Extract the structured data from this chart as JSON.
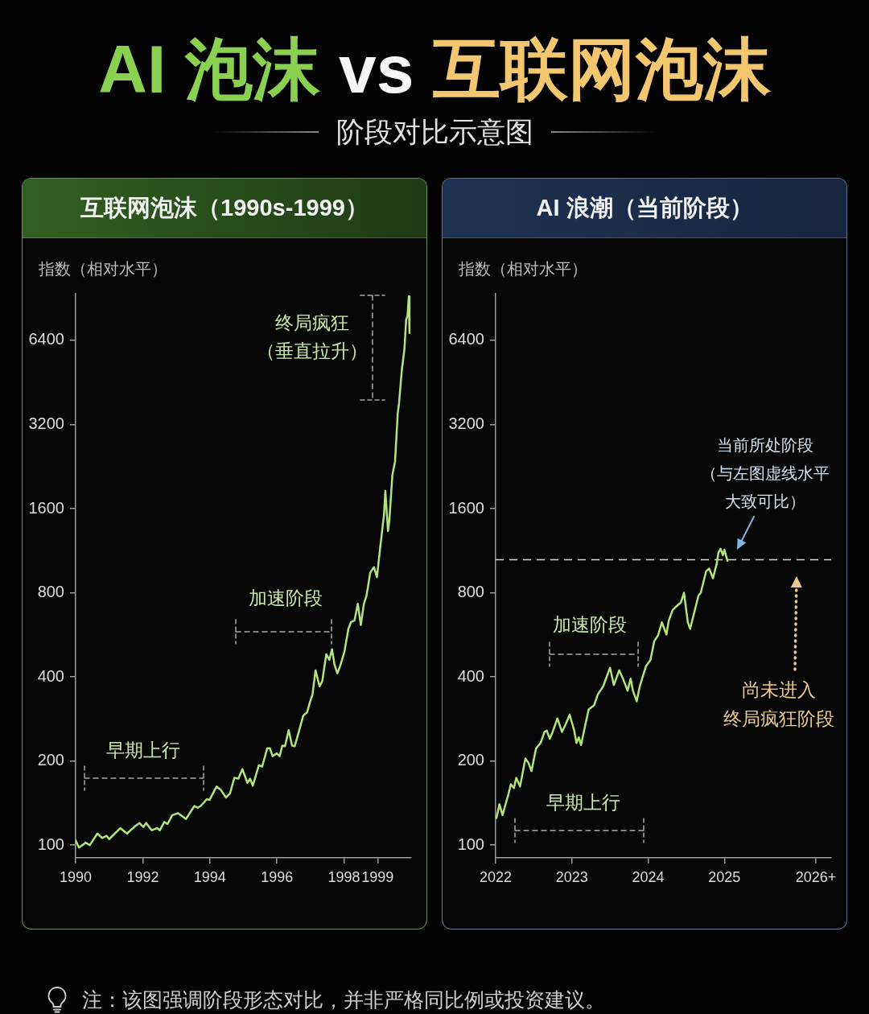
{
  "chart_data": [
    {
      "type": "other",
      "title": "AI 泡沫 vs 互联网泡沫",
      "subtitle": "阶段对比示意图"
    },
    {
      "type": "line",
      "title": "互联网泡沫（1990s-1999）",
      "ylabel": "指数（相对水平）",
      "log": true,
      "x": [
        1990.0,
        1990.1,
        1990.3,
        1990.42,
        1990.65,
        1990.79,
        1990.92,
        1991.0,
        1991.33,
        1991.53,
        1991.78,
        1991.9,
        1992.02,
        1992.1,
        1992.27,
        1992.43,
        1992.51,
        1992.64,
        1992.74,
        1992.88,
        1993.05,
        1993.17,
        1993.29,
        1993.4,
        1993.54,
        1993.64,
        1993.73,
        1993.91,
        1993.99,
        1994.2,
        1994.32,
        1994.48,
        1994.6,
        1994.73,
        1994.85,
        1994.97,
        1995.12,
        1995.2,
        1995.28,
        1995.46,
        1995.56,
        1995.71,
        1995.79,
        1995.87,
        1995.99,
        1996.08,
        1996.16,
        1996.24,
        1996.35,
        1996.45,
        1996.53,
        1996.65,
        1996.78,
        1996.9,
        1996.98,
        1997.06,
        1997.15,
        1997.27,
        1997.35,
        1997.47,
        1997.56,
        1997.64,
        1997.72,
        1997.8,
        1997.89,
        1998.01,
        1998.13,
        1998.21,
        1998.31,
        1998.41,
        1998.5,
        1998.59,
        1998.67,
        1998.78,
        1998.89,
        1998.98,
        1999.07,
        1999.19,
        1999.23,
        1999.31,
        1999.35,
        1999.44,
        1999.52,
        1999.6,
        1999.64,
        1999.72,
        1999.8,
        1999.85,
        1999.89,
        1999.93,
        1999.95
      ],
      "series": [
        {
          "color": "#b2e47c",
          "values": [
            104,
            98,
            102,
            100,
            110,
            106,
            108,
            105,
            115,
            110,
            117,
            120,
            116,
            120,
            113,
            115,
            113,
            121,
            119,
            128,
            130,
            127,
            124,
            130,
            138,
            136,
            138,
            146,
            145,
            162,
            158,
            148,
            153,
            174,
            173,
            187,
            167,
            173,
            163,
            193,
            191,
            222,
            222,
            208,
            213,
            208,
            227,
            226,
            258,
            227,
            226,
            254,
            290,
            299,
            324,
            346,
            422,
            370,
            386,
            482,
            460,
            502,
            440,
            412,
            440,
            491,
            595,
            629,
            636,
            730,
            613,
            730,
            781,
            944,
            988,
            910,
            1140,
            1520,
            1850,
            1330,
            1450,
            2110,
            2360,
            3510,
            3830,
            4990,
            5960,
            7590,
            7830,
            9200,
            6800
          ]
        }
      ],
      "xlim": [
        1990,
        2000
      ],
      "xticks": [
        1990,
        1992,
        1994,
        1996,
        1998,
        1999
      ],
      "ylim": [
        90,
        9400
      ],
      "yticks": [
        100,
        200,
        400,
        800,
        1600,
        3200,
        6400
      ],
      "annotations": [
        "早期上行",
        "加速阶段",
        "终局疯狂（垂直拉升）"
      ]
    },
    {
      "type": "line",
      "title": "AI 浪潮（当前阶段）",
      "ylabel": "指数（相对水平）",
      "log": true,
      "x": [
        2022.01,
        2022.05,
        2022.09,
        2022.17,
        2022.2,
        2022.24,
        2022.27,
        2022.32,
        2022.39,
        2022.43,
        2022.47,
        2022.53,
        2022.59,
        2022.64,
        2022.67,
        2022.71,
        2022.74,
        2022.81,
        2022.87,
        2022.92,
        2022.97,
        2023.03,
        2023.06,
        2023.09,
        2023.12,
        2023.17,
        2023.22,
        2023.29,
        2023.34,
        2023.41,
        2023.5,
        2023.55,
        2023.62,
        2023.67,
        2023.73,
        2023.77,
        2023.8,
        2023.85,
        2023.89,
        2023.97,
        2024.03,
        2024.08,
        2024.13,
        2024.18,
        2024.24,
        2024.27,
        2024.32,
        2024.37,
        2024.43,
        2024.47,
        2024.52,
        2024.55,
        2024.59,
        2024.66,
        2024.69,
        2024.76,
        2024.8,
        2024.85,
        2024.9,
        2024.92,
        2024.95,
        2024.98,
        2025.0,
        2025.04
      ],
      "series": [
        {
          "color": "#b2e47c",
          "values": [
            125,
            140,
            128,
            153,
            165,
            160,
            174,
            162,
            204,
            197,
            184,
            222,
            232,
            254,
            257,
            240,
            251,
            284,
            254,
            271,
            293,
            257,
            232,
            243,
            228,
            265,
            306,
            316,
            346,
            370,
            431,
            374,
            422,
            394,
            357,
            394,
            357,
            327,
            370,
            436,
            460,
            537,
            563,
            627,
            567,
            635,
            693,
            715,
            739,
            800,
            627,
            594,
            656,
            782,
            800,
            955,
            976,
            901,
            1020,
            1110,
            1150,
            1090,
            1140,
            1040
          ]
        }
      ],
      "xlim": [
        2022,
        2026.4
      ],
      "xticks": [
        2022,
        2023,
        2024,
        2025,
        {
          "value": 2026.2,
          "label": "2026+"
        }
      ],
      "ylim": [
        90,
        9400
      ],
      "yticks": [
        100,
        200,
        400,
        800,
        1600,
        3200,
        6400
      ],
      "ref_lines": [
        {
          "axis": "y",
          "value": 1050,
          "label": "当前所处阶段（与左图虚线水平大致可比）",
          "line_style": "dashed",
          "color": "#d6d6d6"
        }
      ],
      "annotations": [
        "加速阶段",
        "早期上行",
        "尚未进入终局疯狂阶段"
      ]
    },
    {
      "type": "other",
      "annotations": [
        "注：该图强调阶段形态对比，并非严格同比例或投资建议。"
      ]
    }
  ]
}
